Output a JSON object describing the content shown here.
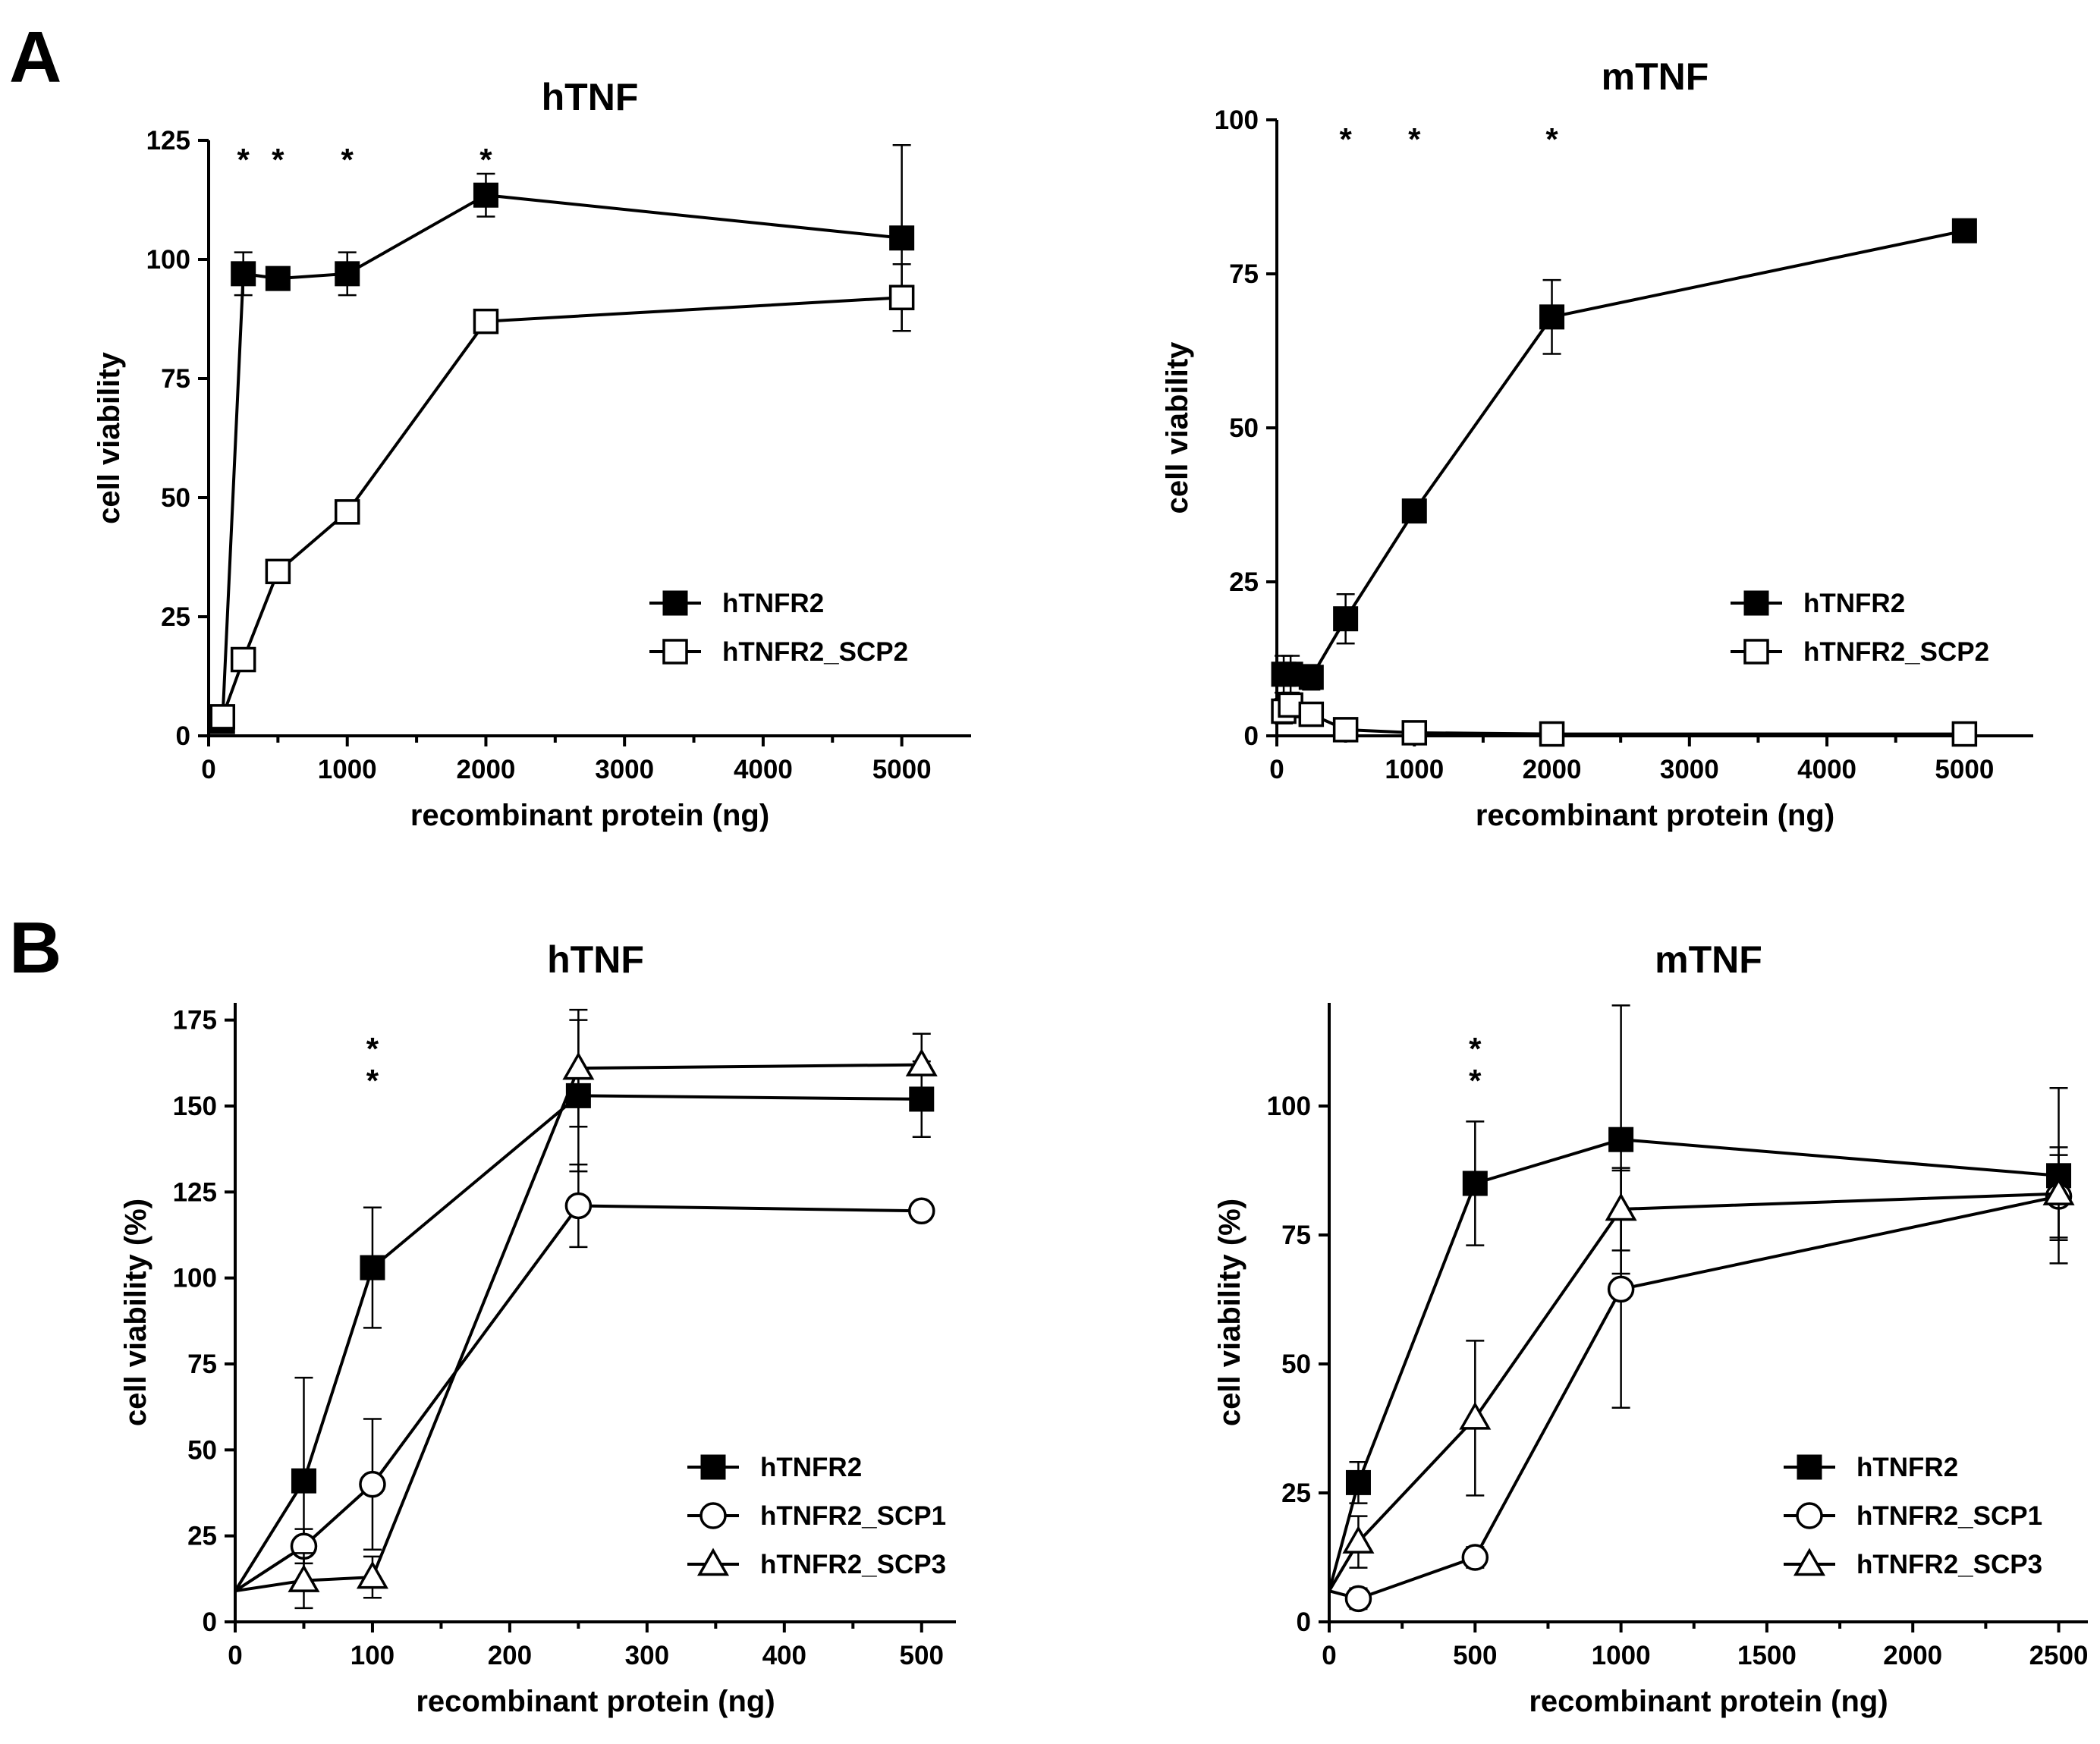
{
  "figure": {
    "panels": [
      {
        "letter": "A"
      },
      {
        "letter": "B"
      }
    ]
  },
  "chart_data": [
    {
      "type": "line",
      "title": "hTNF",
      "xlabel": "recombinant protein (ng)",
      "ylabel": "cell viability",
      "xlim": [
        0,
        5500
      ],
      "ylim": [
        0,
        125
      ],
      "xticks": [
        0,
        1000,
        2000,
        3000,
        4000,
        5000
      ],
      "yticks": [
        0,
        25,
        50,
        75,
        100,
        125
      ],
      "legend": "bottom-right",
      "asterisk_x": [
        250,
        500,
        1000,
        2000
      ],
      "asterisk_rows": 1,
      "series": [
        {
          "name": "hTNFR2",
          "marker": "filled-square",
          "x": [
            100,
            250,
            500,
            1000,
            2000,
            5000
          ],
          "y": [
            3,
            97,
            96,
            97,
            113.5,
            104.5
          ],
          "err": [
            2,
            4.5,
            1.5,
            4.5,
            4.5,
            19.5
          ]
        },
        {
          "name": "hTNFR2_SCP2",
          "marker": "open-square",
          "x": [
            100,
            250,
            500,
            1000,
            2000,
            5000
          ],
          "y": [
            4,
            16,
            34.5,
            47,
            87,
            92
          ],
          "err": [
            2,
            1.5,
            1.5,
            1.5,
            1.5,
            7
          ]
        }
      ]
    },
    {
      "type": "line",
      "title": "mTNF",
      "xlabel": "recombinant protein (ng)",
      "ylabel": "cell viability",
      "xlim": [
        0,
        5500
      ],
      "ylim": [
        0,
        100
      ],
      "xticks": [
        0,
        1000,
        2000,
        3000,
        4000,
        5000
      ],
      "yticks": [
        0,
        25,
        50,
        75,
        100
      ],
      "legend": "bottom-right",
      "asterisk_x": [
        500,
        1000,
        2000
      ],
      "asterisk_rows": 1,
      "series": [
        {
          "name": "hTNFR2",
          "marker": "filled-square",
          "x": [
            50,
            100,
            250,
            500,
            1000,
            2000,
            5000
          ],
          "y": [
            10,
            10,
            9.5,
            19,
            36.5,
            68,
            82
          ],
          "err": [
            3,
            3,
            2,
            4,
            1.5,
            6,
            1
          ]
        },
        {
          "name": "hTNFR2_SCP2",
          "marker": "open-square",
          "x": [
            50,
            100,
            250,
            500,
            1000,
            2000,
            5000
          ],
          "y": [
            4,
            5,
            3.5,
            1,
            0.5,
            0.3,
            0.3
          ],
          "err": [
            2,
            2,
            1.5,
            1,
            0.5,
            0.3,
            0.3
          ]
        }
      ]
    },
    {
      "type": "line",
      "title": "hTNF",
      "xlabel": "recombinant protein (ng)",
      "ylabel": "cell viability (%)",
      "xlim": [
        0,
        525
      ],
      "ylim": [
        0,
        180
      ],
      "xticks": [
        0,
        100,
        200,
        300,
        400,
        500
      ],
      "yticks": [
        0,
        25,
        50,
        75,
        100,
        125,
        150,
        175
      ],
      "legend": "bottom-right",
      "asterisk_x": [
        100
      ],
      "asterisk_rows": 2,
      "series": [
        {
          "name": "hTNFR2",
          "marker": "filled-square",
          "x": [
            0,
            50,
            100,
            250,
            500
          ],
          "y": [
            9,
            41,
            103,
            153,
            152
          ],
          "err": [
            0,
            30,
            17.5,
            22,
            11
          ]
        },
        {
          "name": "hTNFR2_SCP1",
          "marker": "open-circle",
          "x": [
            0,
            50,
            100,
            250,
            500
          ],
          "y": [
            9,
            22,
            40,
            121,
            119.5
          ],
          "err": [
            0,
            5,
            19,
            12,
            2
          ]
        },
        {
          "name": "hTNFR2_SCP3",
          "marker": "open-triangle",
          "x": [
            0,
            50,
            100,
            250,
            500
          ],
          "y": [
            9,
            12,
            13,
            161,
            162
          ],
          "err": [
            0,
            8,
            6,
            17,
            9
          ]
        }
      ]
    },
    {
      "type": "line",
      "title": "mTNF",
      "xlabel": "recombinant protein (ng)",
      "ylabel": "cell viability (%)",
      "xlim": [
        0,
        2600
      ],
      "ylim": [
        0,
        120
      ],
      "xticks": [
        0,
        500,
        1000,
        1500,
        2000,
        2500
      ],
      "yticks": [
        0,
        25,
        50,
        75,
        100
      ],
      "legend": "bottom-right",
      "asterisk_x": [
        500
      ],
      "asterisk_rows": 2,
      "series": [
        {
          "name": "hTNFR2",
          "marker": "filled-square",
          "x": [
            0,
            100,
            500,
            1000,
            2500
          ],
          "y": [
            6,
            27,
            85,
            93.5,
            86.5
          ],
          "err": [
            0,
            4,
            12,
            26,
            17
          ]
        },
        {
          "name": "hTNFR2_SCP1",
          "marker": "open-circle",
          "x": [
            0,
            100,
            500,
            1000,
            2500
          ],
          "y": [
            6,
            4.5,
            12.5,
            64.5,
            82.5
          ],
          "err": [
            0,
            2,
            2,
            23,
            8
          ]
        },
        {
          "name": "hTNFR2_SCP3",
          "marker": "open-triangle",
          "x": [
            0,
            100,
            500,
            1000,
            2500
          ],
          "y": [
            6,
            15.5,
            39.5,
            80,
            83
          ],
          "err": [
            0,
            5,
            15,
            8,
            9
          ]
        }
      ]
    }
  ]
}
